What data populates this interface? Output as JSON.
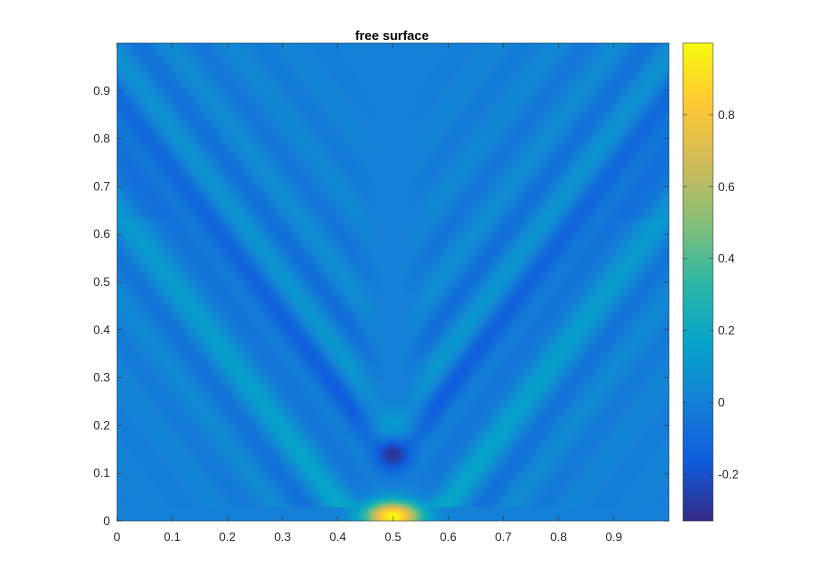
{
  "chart_data": {
    "type": "heatmap",
    "title": "free surface",
    "xlabel": "",
    "ylabel": "",
    "xlim": [
      0,
      1
    ],
    "ylim": [
      0,
      1
    ],
    "x_ticks": [
      "0",
      "0.1",
      "0.2",
      "0.3",
      "0.4",
      "0.5",
      "0.6",
      "0.7",
      "0.8",
      "0.9"
    ],
    "y_ticks": [
      "0",
      "0.1",
      "0.2",
      "0.3",
      "0.4",
      "0.5",
      "0.6",
      "0.7",
      "0.8",
      "0.9"
    ],
    "colorbar": {
      "colormap": "parula",
      "range": [
        -0.33,
        1.0
      ],
      "ticks": [
        "-0.2",
        "0",
        "0.2",
        "0.4",
        "0.6",
        "0.8"
      ]
    },
    "features": [
      {
        "x": 0.5,
        "y": 0.01,
        "value": 1.0
      },
      {
        "x": 0.5,
        "y": 0.14,
        "value": -0.33
      },
      {
        "x": 0.5,
        "y": 0.2,
        "value": 0.15
      }
    ],
    "wave_arms": {
      "apex": [
        0.5,
        0.03
      ],
      "outer_trough_tip_y": 0.8,
      "background_value": 0.0
    },
    "grid": false,
    "colors": {
      "colormap_stops": [
        "#352a87",
        "#0f5cdd",
        "#1481d6",
        "#06a4ca",
        "#2eb7a4",
        "#87bf77",
        "#d1bb59",
        "#fec832",
        "#f9fb0e"
      ]
    }
  }
}
